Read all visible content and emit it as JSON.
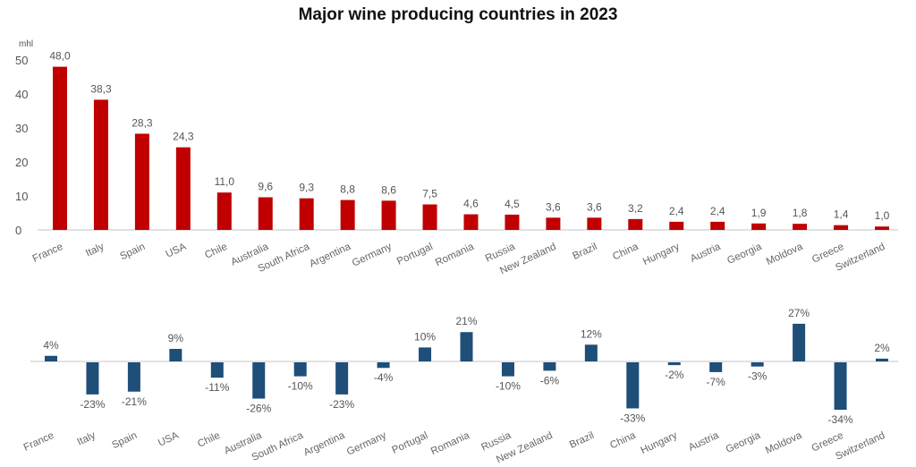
{
  "chart_data": [
    {
      "type": "bar",
      "title": "Major wine producing countries in 2023",
      "ylabel": "mhl",
      "xlabel": "",
      "ylim": [
        0,
        50
      ],
      "yticks": [
        0,
        10,
        20,
        30,
        40,
        50
      ],
      "grid": false,
      "color": "#c00000",
      "categories": [
        "France",
        "Italy",
        "Spain",
        "USA",
        "Chile",
        "Australia",
        "South Africa",
        "Argentina",
        "Germany",
        "Portugal",
        "Romania",
        "Russia",
        "New Zealand",
        "Brazil",
        "China",
        "Hungary",
        "Austria",
        "Georgia",
        "Moldova",
        "Greece",
        "Switzerland"
      ],
      "values": [
        48.0,
        38.3,
        28.3,
        24.3,
        11.0,
        9.6,
        9.3,
        8.8,
        8.6,
        7.5,
        4.6,
        4.5,
        3.6,
        3.6,
        3.2,
        2.4,
        2.4,
        1.9,
        1.8,
        1.4,
        1.0
      ],
      "data_labels": [
        "48,0",
        "38,3",
        "28,3",
        "24,3",
        "11,0",
        "9,6",
        "9,3",
        "8,8",
        "8,6",
        "7,5",
        "4,6",
        "4,5",
        "3,6",
        "3,6",
        "3,2",
        "2,4",
        "2,4",
        "1,9",
        "1,8",
        "1,4",
        "1,0"
      ]
    },
    {
      "type": "bar",
      "title": "",
      "ylabel": "",
      "xlabel": "",
      "ylim": [
        -34,
        27
      ],
      "grid": false,
      "color": "#1f4e79",
      "categories": [
        "France",
        "Italy",
        "Spain",
        "USA",
        "Chile",
        "Australia",
        "South Africa",
        "Argentina",
        "Germany",
        "Portugal",
        "Romania",
        "Russia",
        "New Zealand",
        "Brazil",
        "China",
        "Hungary",
        "Austria",
        "Georgia",
        "Moldova",
        "Greece",
        "Switzerland"
      ],
      "values": [
        4,
        -23,
        -21,
        9,
        -11,
        -26,
        -10,
        -23,
        -4,
        10,
        21,
        -10,
        -6,
        12,
        -33,
        -2,
        -7,
        -3,
        27,
        -34,
        2
      ],
      "data_labels": [
        "4%",
        "-23%",
        "-21%",
        "9%",
        "-11%",
        "-26%",
        "-10%",
        "-23%",
        "-4%",
        "10%",
        "21%",
        "-10%",
        "-6%",
        "12%",
        "-33%",
        "-2%",
        "-7%",
        "-3%",
        "27%",
        "-34%",
        "2%"
      ]
    }
  ]
}
